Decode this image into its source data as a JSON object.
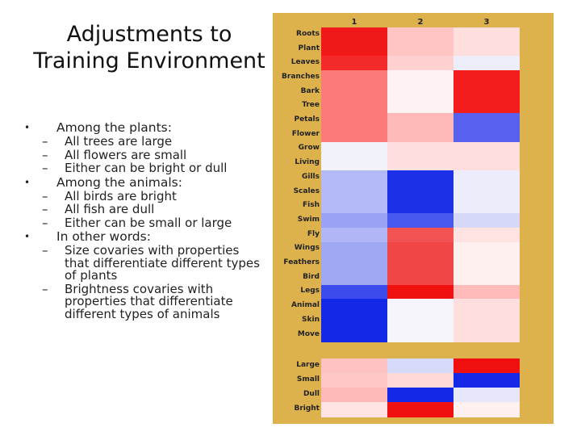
{
  "title": "Adjustments to Training Environment",
  "bullets": [
    {
      "text": "Among the plants:",
      "subs": [
        "All trees are large",
        "All flowers are small",
        "Either can be bright or dull"
      ]
    },
    {
      "text": "Among the animals:",
      "subs": [
        "All birds are bright",
        "All fish are dull",
        "Either can be small or large"
      ]
    },
    {
      "text": "In other words:",
      "subs": [
        "Size covaries with properties that differentiate different types of plants",
        "Brightness covaries with properties that differentiate different types of animals"
      ]
    }
  ],
  "matrix": {
    "columns": [
      "1",
      "2",
      "3"
    ],
    "rows": [
      "Roots",
      "Plant",
      "Leaves",
      "Branches",
      "Bark",
      "Tree",
      "Petals",
      "Flower",
      "Grow",
      "Living",
      "Gills",
      "Scales",
      "Fish",
      "Swim",
      "Fly",
      "Wings",
      "Feathers",
      "Bird",
      "Legs",
      "Animal",
      "Skin",
      "Move",
      "Large",
      "Small",
      "Dull",
      "Bright"
    ],
    "colors": [
      [
        "#f01818",
        "#ffc4c4",
        "#ffdede"
      ],
      [
        "#f01818",
        "#ffc4c4",
        "#ffdede"
      ],
      [
        "#f42a2a",
        "#ffd0d0",
        "#eeeefa"
      ],
      [
        "#fa7a7a",
        "#fff2f2",
        "#f41c1c"
      ],
      [
        "#fa7a7a",
        "#fff2f2",
        "#f41c1c"
      ],
      [
        "#fa7a7a",
        "#fff2f2",
        "#f41c1c"
      ],
      [
        "#fa7a7a",
        "#ffb8b8",
        "#5860f0"
      ],
      [
        "#fa7a7a",
        "#ffb8b8",
        "#5860f0"
      ],
      [
        "#f2f2fa",
        "#ffdede",
        "#ffdede"
      ],
      [
        "#f2f2fa",
        "#ffdede",
        "#ffdede"
      ],
      [
        "#b4baf6",
        "#1c30e8",
        "#ececfa"
      ],
      [
        "#b4baf6",
        "#1c30e8",
        "#ececfa"
      ],
      [
        "#b4baf6",
        "#1c30e8",
        "#ececfa"
      ],
      [
        "#9aa2f4",
        "#4858ee",
        "#d6d8f8"
      ],
      [
        "#b0b6f6",
        "#f25252",
        "#ffe2e2"
      ],
      [
        "#a0a8f4",
        "#f24646",
        "#fff0f0"
      ],
      [
        "#a0a8f4",
        "#f24646",
        "#fff0f0"
      ],
      [
        "#a0a8f4",
        "#f24646",
        "#fff0f0"
      ],
      [
        "#3c4cec",
        "#f01010",
        "#ffbaba"
      ],
      [
        "#1428e8",
        "#f4f4fa",
        "#ffdede"
      ],
      [
        "#1428e8",
        "#f4f4fa",
        "#ffdede"
      ],
      [
        "#1428e8",
        "#f4f4fa",
        "#ffdede"
      ],
      [
        "#ffc2c2",
        "#d6daf8",
        "#f01010"
      ],
      [
        "#ffc8c8",
        "#ffd8d8",
        "#1828e8"
      ],
      [
        "#ffb8b8",
        "#1428e8",
        "#e6e8fa"
      ],
      [
        "#ffe2e2",
        "#f01010",
        "#fff0f0"
      ]
    ]
  }
}
